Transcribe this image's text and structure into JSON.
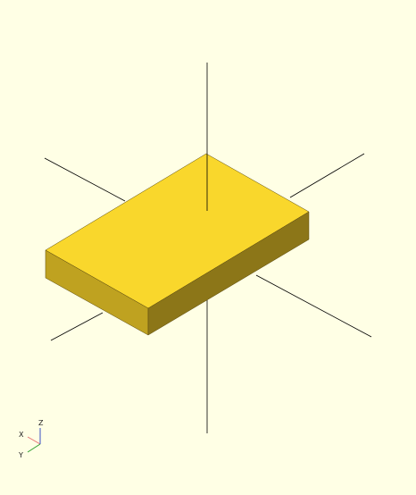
{
  "viewport": {
    "background_color": "#ffffe5"
  },
  "model": {
    "shape": "rectangular box",
    "colors": {
      "top_face": "#f9d72c",
      "left_face": "#bfa220",
      "right_face": "#8c7618",
      "edge": "#5a4a10"
    }
  },
  "axes": {
    "line_color": "#000000"
  },
  "axis_indicator": {
    "x_label": "X",
    "y_label": "Y",
    "z_label": "Z",
    "x_color": "#e57373",
    "y_color": "#2e9e2e",
    "z_color": "#3a4fc4"
  }
}
